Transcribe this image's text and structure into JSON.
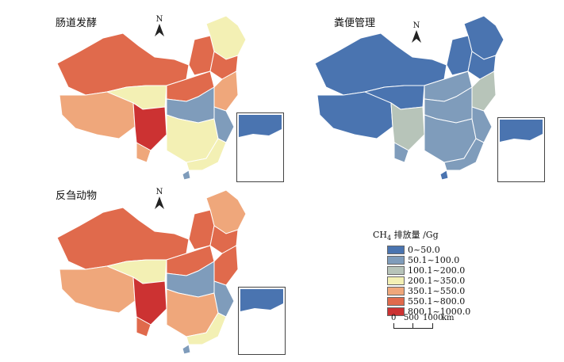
{
  "maps": [
    {
      "id": "enteric",
      "title": "肠道发酵"
    },
    {
      "id": "manure",
      "title": "粪便管理"
    },
    {
      "id": "ruminant",
      "title": "反刍动物"
    }
  ],
  "north_label": "N",
  "legend": {
    "title_main": "CH",
    "title_sub": "4",
    "title_rest": " 排放量 /Gg",
    "items": [
      {
        "label": "0~50.0",
        "color": "#4a74b0"
      },
      {
        "label": "50.1~100.0",
        "color": "#7f9cbb"
      },
      {
        "label": "100.1~200.0",
        "color": "#b7c4b9"
      },
      {
        "label": "200.1~350.0",
        "color": "#f3f0b4"
      },
      {
        "label": "350.1~550.0",
        "color": "#efa77b"
      },
      {
        "label": "550.1~800.0",
        "color": "#e06a4c"
      },
      {
        "label": "800.1~1000.0",
        "color": "#cc3232"
      }
    ]
  },
  "scale": {
    "t0": "0",
    "t1": "500",
    "t2": "1000",
    "unit": "km"
  }
}
